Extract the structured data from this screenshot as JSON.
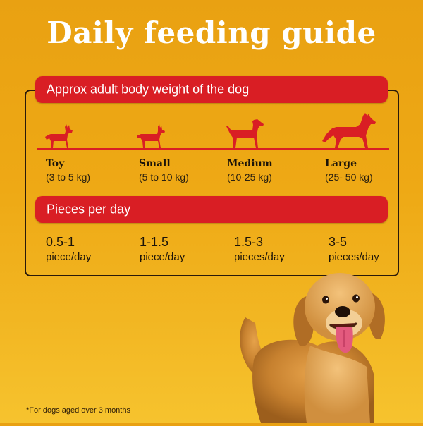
{
  "title": "Daily feeding guide",
  "weight_section": {
    "heading": "Approx adult body weight of the dog",
    "sizes": [
      {
        "name": "Toy",
        "range": "(3 to 5 kg)",
        "icon": "toy-dog-icon"
      },
      {
        "name": "Small",
        "range": "(5 to 10 kg)",
        "icon": "small-dog-icon"
      },
      {
        "name": "Medium",
        "range": "(10-25 kg)",
        "icon": "medium-dog-icon"
      },
      {
        "name": "Large",
        "range": "(25- 50 kg)",
        "icon": "large-dog-icon"
      }
    ]
  },
  "pieces_section": {
    "heading": "Pieces per day",
    "amounts": [
      {
        "amount": "0.5-1",
        "unit": "piece/day"
      },
      {
        "amount": "1-1.5",
        "unit": "piece/day"
      },
      {
        "amount": "1.5-3",
        "unit": "pieces/day"
      },
      {
        "amount": "3-5",
        "unit": "pieces/day"
      }
    ]
  },
  "footnote": "*For dogs aged over 3 months",
  "colors": {
    "accent_red": "#d91e24",
    "background": "#eea915",
    "text_dark": "#1c1409"
  }
}
